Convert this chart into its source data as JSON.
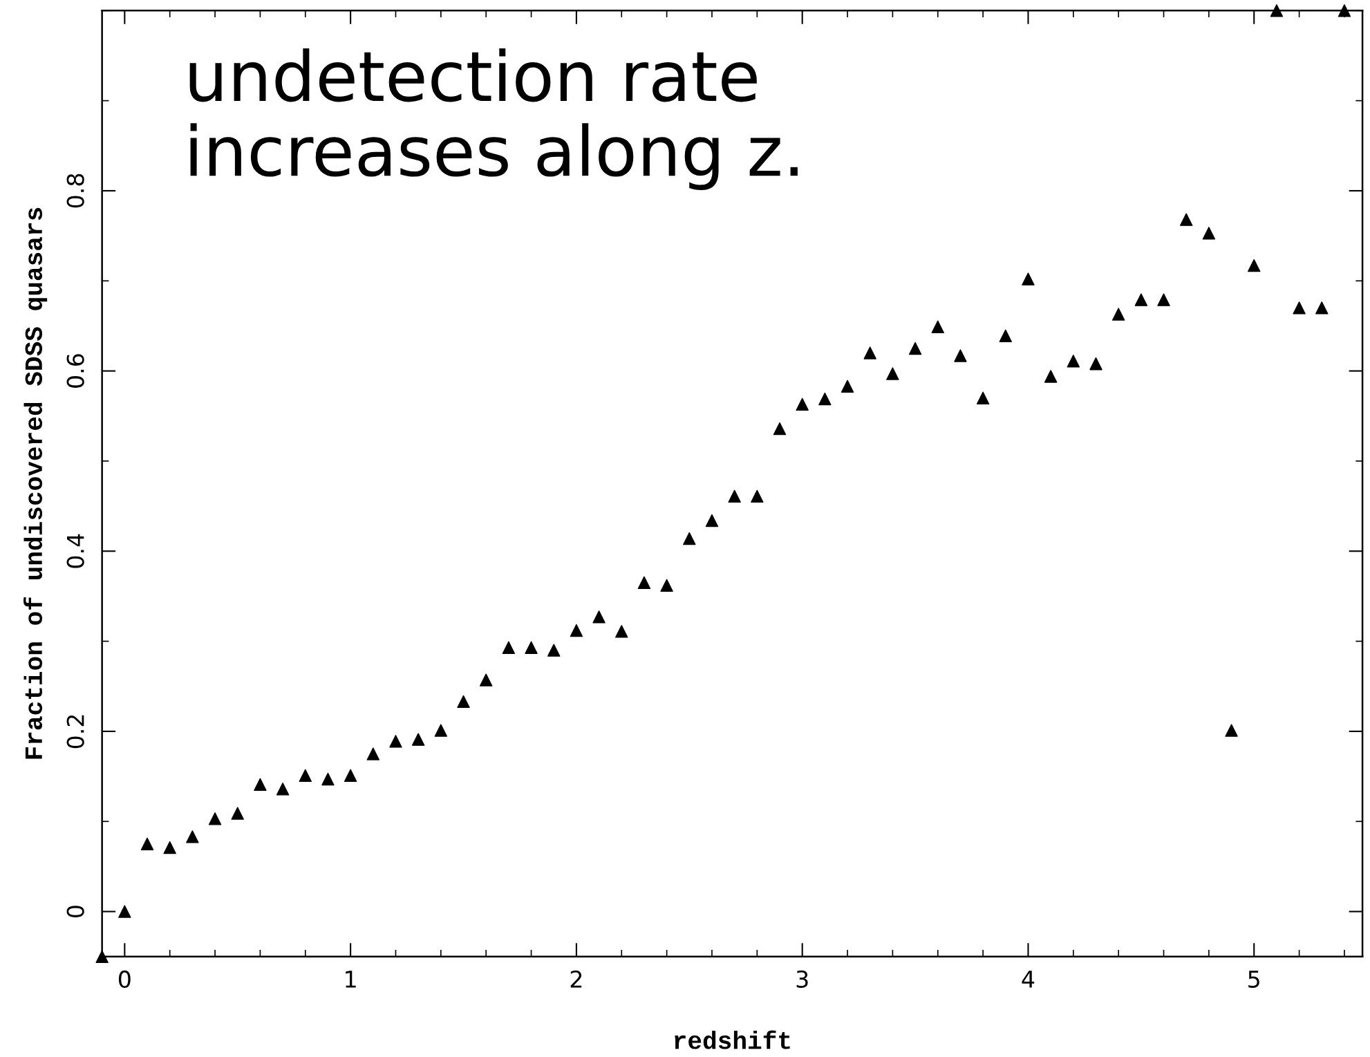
{
  "chart_data": {
    "type": "scatter",
    "xlabel": "redshift",
    "ylabel": "Fraction of undiscovered SDSS quasars",
    "annotations": [
      "undetection rate\nincreases along z."
    ],
    "x": [
      -0.1,
      0,
      0.1,
      0.2,
      0.3,
      0.4,
      0.5,
      0.6,
      0.7,
      0.8,
      0.9,
      1.0,
      1.1,
      1.2,
      1.3,
      1.4,
      1.5,
      1.6,
      1.7,
      1.8,
      1.9,
      2.0,
      2.1,
      2.2,
      2.3,
      2.4,
      2.5,
      2.6,
      2.7,
      2.8,
      2.9,
      3.0,
      3.1,
      3.2,
      3.3,
      3.4,
      3.5,
      3.6,
      3.7,
      3.8,
      3.9,
      4.0,
      4.1,
      4.2,
      4.3,
      4.4,
      4.5,
      4.6,
      4.7,
      4.8,
      4.9,
      5.0,
      5.1,
      5.2,
      5.3,
      5.4
    ],
    "series": [
      {
        "color": "#000000",
        "values": [
          -0.05,
          0,
          0.075,
          0.071,
          0.083,
          0.103,
          0.109,
          0.141,
          0.136,
          0.151,
          0.147,
          0.151,
          0.175,
          0.189,
          0.191,
          0.201,
          0.233,
          0.257,
          0.293,
          0.293,
          0.29,
          0.312,
          0.327,
          0.311,
          0.365,
          0.362,
          0.414,
          0.434,
          0.461,
          0.461,
          0.536,
          0.563,
          0.569,
          0.583,
          0.62,
          0.597,
          0.625,
          0.649,
          0.617,
          0.57,
          0.639,
          0.702,
          0.594,
          0.611,
          0.608,
          0.663,
          0.679,
          0.679,
          0.768,
          0.753,
          0.201,
          0.717,
          1.0,
          0.67,
          0.67,
          1.0
        ]
      }
    ],
    "marker": "triangle",
    "xlim": [
      -0.1,
      5.48
    ],
    "ylim": [
      -0.05,
      1.0
    ],
    "xticks": [
      0,
      1,
      2,
      3,
      4,
      5
    ],
    "yticks": [
      0,
      0.2,
      0.4,
      0.6,
      0.8
    ],
    "grid": false,
    "legend": false
  }
}
